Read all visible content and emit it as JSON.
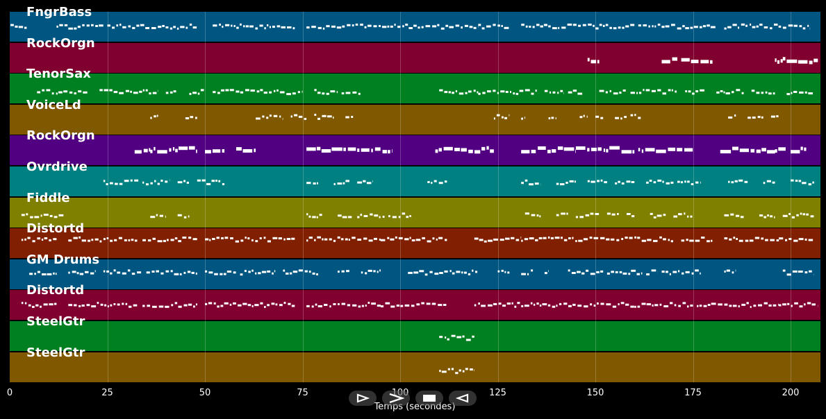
{
  "app": {
    "x_axis_label": "Temps (secondes)"
  },
  "x_ticks": [
    "0",
    "25",
    "50",
    "75",
    "100",
    "125",
    "150",
    "175",
    "200"
  ],
  "tracks": [
    {
      "name": "FngrBass",
      "color": "#005680",
      "segments": [
        [
          0.2,
          4.5
        ],
        [
          12,
          24
        ],
        [
          25,
          48
        ],
        [
          52,
          73
        ],
        [
          76,
          120
        ],
        [
          120,
          128
        ],
        [
          131,
          150
        ],
        [
          150,
          160
        ],
        [
          161,
          173
        ],
        [
          173,
          181
        ],
        [
          183,
          205
        ]
      ]
    },
    {
      "name": "RockOrgn",
      "color": "#800030",
      "segments": [
        [
          148,
          151
        ],
        [
          167,
          171
        ],
        [
          172,
          180
        ],
        [
          196,
          198
        ],
        [
          198,
          207
        ]
      ]
    },
    {
      "name": "TenorSax",
      "color": "#008020",
      "segments": [
        [
          7,
          20
        ],
        [
          23,
          38
        ],
        [
          40,
          43
        ],
        [
          46,
          50
        ],
        [
          52,
          75
        ],
        [
          78,
          84
        ],
        [
          85,
          90
        ],
        [
          110,
          120
        ],
        [
          120,
          135
        ],
        [
          137,
          142
        ],
        [
          143,
          147
        ],
        [
          151,
          158
        ],
        [
          159,
          171
        ],
        [
          173,
          178
        ],
        [
          181,
          188
        ],
        [
          190,
          196
        ],
        [
          199,
          206
        ]
      ]
    },
    {
      "name": "VoiceLd",
      "color": "#805800",
      "segments": [
        [
          36,
          38
        ],
        [
          45,
          48
        ],
        [
          63,
          70
        ],
        [
          72,
          76
        ],
        [
          78,
          83
        ],
        [
          86,
          88
        ],
        [
          124,
          128
        ],
        [
          131,
          132
        ],
        [
          138,
          140
        ],
        [
          146,
          148
        ],
        [
          150,
          152
        ],
        [
          155,
          158
        ],
        [
          159,
          162
        ],
        [
          184,
          186
        ],
        [
          189,
          193
        ],
        [
          195,
          197
        ]
      ]
    },
    {
      "name": "RockOrgn",
      "color": "#500080",
      "segments": [
        [
          32,
          36
        ],
        [
          36,
          48
        ],
        [
          50,
          55
        ],
        [
          58,
          63
        ],
        [
          76,
          89
        ],
        [
          89,
          98
        ],
        [
          109,
          124
        ],
        [
          131,
          145
        ],
        [
          145,
          160
        ],
        [
          161,
          175
        ],
        [
          182,
          196
        ],
        [
          196,
          199
        ],
        [
          200,
          204
        ]
      ]
    },
    {
      "name": "Ovrdrive",
      "color": "#008080",
      "segments": [
        [
          24,
          33
        ],
        [
          34,
          41
        ],
        [
          43,
          46
        ],
        [
          48,
          55
        ],
        [
          76,
          79
        ],
        [
          83,
          87
        ],
        [
          89,
          93
        ],
        [
          107,
          112
        ],
        [
          131,
          136
        ],
        [
          140,
          145
        ],
        [
          148,
          153
        ],
        [
          155,
          160
        ],
        [
          163,
          170
        ],
        [
          171,
          177
        ],
        [
          184,
          189
        ],
        [
          193,
          196
        ],
        [
          200,
          206
        ]
      ]
    },
    {
      "name": "Fiddle",
      "color": "#808000",
      "segments": [
        [
          3,
          14
        ],
        [
          36,
          40
        ],
        [
          43,
          46
        ],
        [
          76,
          80
        ],
        [
          84,
          88
        ],
        [
          89,
          96
        ],
        [
          97,
          103
        ],
        [
          132,
          136
        ],
        [
          140,
          143
        ],
        [
          145,
          151
        ],
        [
          153,
          156
        ],
        [
          158,
          160
        ],
        [
          164,
          168
        ],
        [
          170,
          175
        ],
        [
          183,
          188
        ],
        [
          192,
          196
        ],
        [
          198,
          206
        ]
      ]
    },
    {
      "name": "Distortd",
      "color": "#802000",
      "segments": [
        [
          3,
          12
        ],
        [
          15,
          33
        ],
        [
          34,
          48
        ],
        [
          50,
          73
        ],
        [
          76,
          95
        ],
        [
          95,
          112
        ],
        [
          119,
          131
        ],
        [
          131,
          160
        ],
        [
          160,
          170
        ],
        [
          172,
          180
        ],
        [
          183,
          197
        ],
        [
          197,
          206
        ]
      ]
    },
    {
      "name": "GM Drums",
      "color": "#005680",
      "segments": [
        [
          5,
          12
        ],
        [
          15,
          22
        ],
        [
          24,
          34
        ],
        [
          35,
          48
        ],
        [
          50,
          58
        ],
        [
          59,
          68
        ],
        [
          70,
          79
        ],
        [
          84,
          87
        ],
        [
          90,
          95
        ],
        [
          102,
          110
        ],
        [
          110,
          120
        ],
        [
          125,
          128
        ],
        [
          131,
          134
        ],
        [
          137,
          138
        ],
        [
          143,
          152
        ],
        [
          153,
          162
        ],
        [
          163,
          166
        ],
        [
          167,
          177
        ],
        [
          183,
          186
        ],
        [
          198,
          206
        ]
      ]
    },
    {
      "name": "Distortd",
      "color": "#800030",
      "segments": [
        [
          3,
          12
        ],
        [
          15,
          33
        ],
        [
          34,
          48
        ],
        [
          50,
          73
        ],
        [
          76,
          95
        ],
        [
          95,
          112
        ],
        [
          119,
          131
        ],
        [
          131,
          160
        ],
        [
          160,
          175
        ],
        [
          176,
          183
        ],
        [
          183,
          197
        ],
        [
          197,
          207
        ]
      ]
    },
    {
      "name": "SteelGtr",
      "color": "#008020",
      "segments": [
        [
          110,
          119
        ]
      ]
    },
    {
      "name": "SteelGtr",
      "color": "#805800",
      "segments": [
        [
          110,
          119
        ]
      ]
    }
  ],
  "controls": [
    "play-icon",
    "fast-forward-icon",
    "stop-icon",
    "rewind-icon"
  ]
}
